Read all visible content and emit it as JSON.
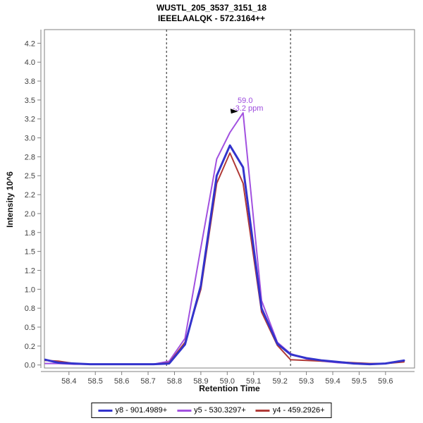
{
  "title": {
    "line1": "WUSTL_205_3537_3151_18",
    "line2": "IEEELAALQK - 572.3164++"
  },
  "chart_data": {
    "type": "line",
    "title": "WUSTL_205_3537_3151_18",
    "subtitle": "IEEELAALQK - 572.3164++",
    "xlabel": "Retention Time",
    "ylabel": "Intensity 10^6",
    "xlim": [
      58.307,
      59.71
    ],
    "ylim": [
      -0.04,
      4.43
    ],
    "grid": false,
    "legend_position": "bottom",
    "x_tick_values": [
      58.4,
      58.5,
      58.6,
      58.7,
      58.8,
      58.9,
      59.0,
      59.1,
      59.2,
      59.3,
      59.4,
      59.5,
      59.6
    ],
    "x_tick_labels": [
      "58.4",
      "58.5",
      "58.6",
      "58.7",
      "58.8",
      "58.9",
      "59.0",
      "59.1",
      "59.2",
      "59.3",
      "59.4",
      "59.5",
      "59.6"
    ],
    "y_tick_values": [
      0,
      0.25,
      0.5,
      0.75,
      1.0,
      1.25,
      1.5,
      1.75,
      2.0,
      2.25,
      2.5,
      2.75,
      3.0,
      3.25,
      3.5,
      3.75,
      4.0,
      4.25
    ],
    "y_tick_labels": [
      "0.0",
      "0.2",
      "0.5",
      "0.8",
      "1.0",
      "1.2",
      "1.5",
      "1.8",
      "2.0",
      "2.2",
      "2.5",
      "2.8",
      "3.0",
      "3.2",
      "3.5",
      "3.8",
      "4.0",
      "4.2"
    ],
    "x": [
      58.31,
      58.36,
      58.42,
      58.48,
      58.54,
      58.6,
      58.66,
      58.72,
      58.78,
      58.84,
      58.9,
      58.96,
      59.01,
      59.06,
      59.13,
      59.19,
      59.24,
      59.3,
      59.36,
      59.42,
      59.48,
      59.54,
      59.6,
      59.67
    ],
    "series": [
      {
        "name": "y5 - 530.3297+",
        "color": "#a251e0",
        "width": 2,
        "values": [
          0.02,
          0.02,
          0.01,
          0.01,
          0.01,
          0.01,
          0.01,
          0.01,
          0.05,
          0.35,
          1.55,
          2.72,
          3.07,
          3.33,
          0.85,
          0.3,
          0.15,
          0.08,
          0.05,
          0.03,
          0.02,
          0.01,
          0.02,
          0.05
        ]
      },
      {
        "name": "y4 - 459.2926+",
        "color": "#b03a37",
        "width": 2,
        "values": [
          0.06,
          0.05,
          0.02,
          0.01,
          0.01,
          0.01,
          0.01,
          0.01,
          0.03,
          0.3,
          1.0,
          2.4,
          2.8,
          2.4,
          0.7,
          0.26,
          0.07,
          0.06,
          0.05,
          0.04,
          0.03,
          0.02,
          0.02,
          0.04
        ]
      },
      {
        "name": "y8 - 901.4989+",
        "color": "#3333cc",
        "width": 3,
        "values": [
          0.07,
          0.03,
          0.02,
          0.01,
          0.01,
          0.01,
          0.01,
          0.01,
          0.02,
          0.27,
          1.05,
          2.5,
          2.9,
          2.61,
          0.75,
          0.28,
          0.14,
          0.09,
          0.06,
          0.04,
          0.02,
          0.01,
          0.02,
          0.06
        ]
      }
    ],
    "peak_boundaries": {
      "start": 58.77,
      "end": 59.24,
      "line_color": "#444444",
      "style": "dashed"
    },
    "annotation": {
      "rt_label": "59.0",
      "ppm_label": "-3.2 ppm",
      "color": "#9d4ade",
      "anchor_x": 59.06,
      "anchor_y": 3.33,
      "arrow": "right-black-triangle"
    }
  },
  "legend_order": [
    "y8 - 901.4989+",
    "y5 - 530.3297+",
    "y4 - 459.2926+"
  ],
  "frame": {
    "border_color": "#808080",
    "tick_text_color": "#404040"
  }
}
